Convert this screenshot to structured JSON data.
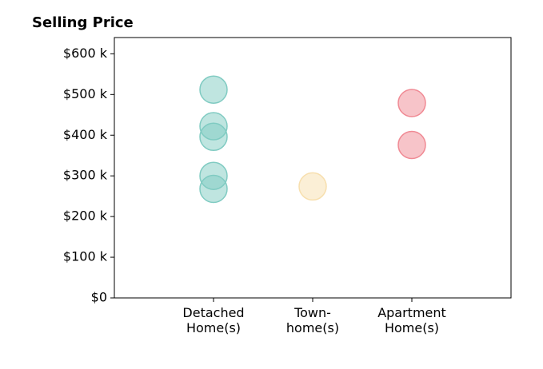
{
  "chart_data": {
    "type": "strip",
    "title": "Selling Price",
    "categories": [
      "Detached\nHome(s)",
      "Town-\nhome(s)",
      "Apartment\nHome(s)"
    ],
    "values": [
      [
        512,
        422,
        396,
        300,
        268
      ],
      [
        274
      ],
      [
        479,
        376
      ]
    ],
    "colors": [
      "#80cbc2",
      "#f7dfae",
      "#f08a94"
    ],
    "ylim": [
      0,
      640
    ],
    "yticks": [
      {
        "value": 0,
        "label": "$0"
      },
      {
        "value": 100,
        "label": "$100 k"
      },
      {
        "value": 200,
        "label": "$200 k"
      },
      {
        "value": 300,
        "label": "$300 k"
      },
      {
        "value": 400,
        "label": "$400 k"
      },
      {
        "value": 500,
        "label": "$500 k"
      },
      {
        "value": 600,
        "label": "$600 k"
      }
    ]
  }
}
